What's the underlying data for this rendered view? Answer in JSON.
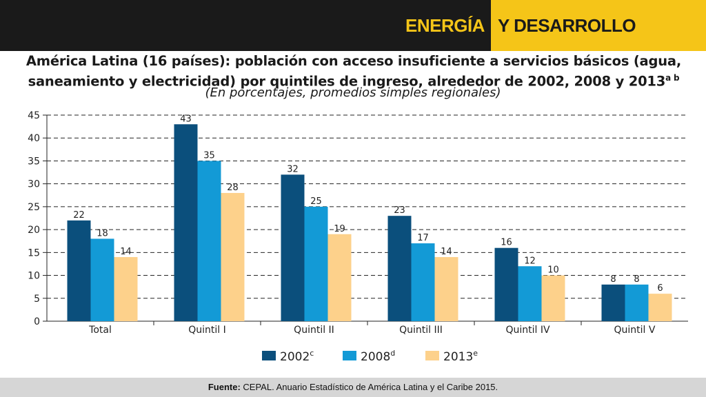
{
  "banner": {
    "word1": "ENERGÍA",
    "word2": "Y DESARROLLO"
  },
  "header": {
    "title_line1": "América Latina (16 países): población con acceso insuficiente a servicios básicos (agua,",
    "title_line2": "saneamiento y electricidad) por quintiles de ingreso, alrededor de 2002, 2008 y 2013",
    "title_sup": "a b",
    "subtitle": "(En porcentajes, promedios simples regionales)"
  },
  "chart_data": {
    "type": "bar",
    "categories": [
      "Total",
      "Quintil I",
      "Quintil II",
      "Quintil III",
      "Quintil IV",
      "Quintil V"
    ],
    "series": [
      {
        "name": "2002",
        "sup": "c",
        "color": "#0b4f7c",
        "values": [
          22,
          43,
          32,
          23,
          16,
          8
        ]
      },
      {
        "name": "2008",
        "sup": "d",
        "color": "#139ad6",
        "values": [
          18,
          35,
          25,
          17,
          12,
          8
        ]
      },
      {
        "name": "2013",
        "sup": "e",
        "color": "#fdd18b",
        "values": [
          14,
          28,
          19,
          14,
          10,
          6
        ]
      }
    ],
    "ylim": [
      0,
      45
    ],
    "yticks": [
      0,
      5,
      10,
      15,
      20,
      25,
      30,
      35,
      40,
      45
    ],
    "grid": "dashed horizontal",
    "legend": "bottom-center"
  },
  "footer": {
    "label": "Fuente:",
    "text": " CEPAL. Anuario Estadístico de América Latina y el Caribe 2015."
  }
}
